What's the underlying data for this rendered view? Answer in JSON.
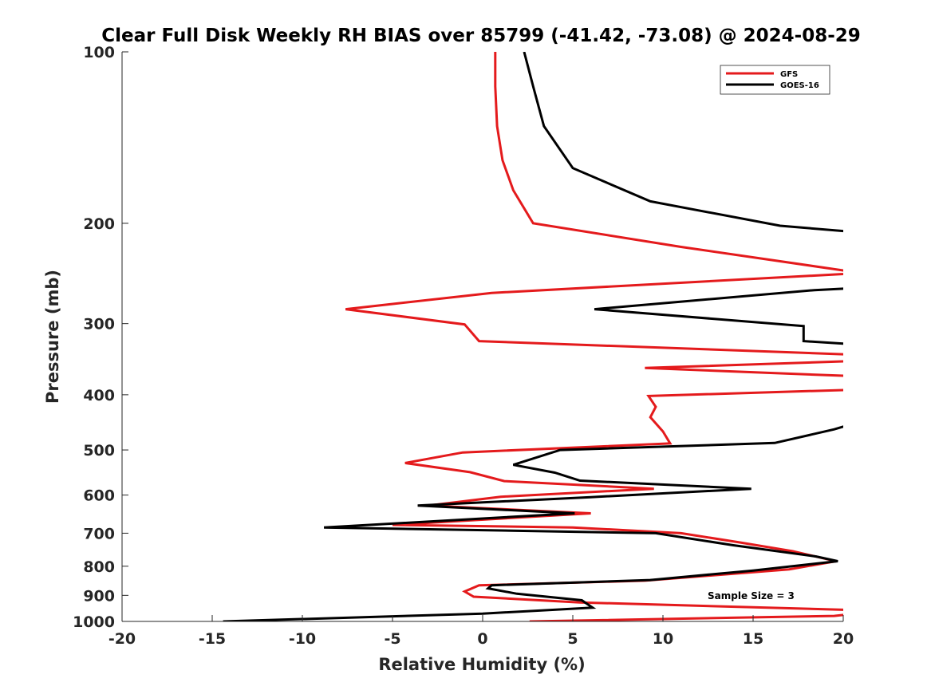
{
  "chart_data": {
    "type": "line",
    "title": "Clear Full Disk Weekly RH BIAS over 85799 (-41.42, -73.08) @ 2024-08-29",
    "xlabel": "Relative Humidity (%)",
    "ylabel": "Pressure (mb)",
    "xlim": [
      -20,
      20
    ],
    "ylim": [
      100,
      1000
    ],
    "y_scale": "log",
    "y_reversed": true,
    "x_ticks": [
      -20,
      -15,
      -10,
      -5,
      0,
      5,
      10,
      15,
      20
    ],
    "y_ticks": [
      100,
      200,
      300,
      400,
      500,
      600,
      700,
      800,
      900,
      1000
    ],
    "grid": false,
    "legend_position": "top-right",
    "annotation": "Sample Size = 3",
    "series": [
      {
        "name": "GFS",
        "color": "#e41a1c",
        "points": [
          [
            0.7,
            100
          ],
          [
            0.7,
            115
          ],
          [
            0.8,
            135
          ],
          [
            1.1,
            155
          ],
          [
            1.7,
            175
          ],
          [
            2.8,
            200
          ],
          [
            11,
            220
          ],
          [
            20,
            242
          ],
          [
            20.5,
            245
          ],
          [
            0.5,
            265
          ],
          [
            -7.6,
            283
          ],
          [
            -1,
            301
          ],
          [
            -0.2,
            322
          ],
          [
            20.5,
            340
          ],
          [
            20.5,
            349
          ],
          [
            9,
            359
          ],
          [
            20.5,
            371
          ],
          [
            20.5,
            392
          ],
          [
            9.2,
            402
          ],
          [
            9.6,
            420
          ],
          [
            9.3,
            438
          ],
          [
            10,
            464
          ],
          [
            10.4,
            487
          ],
          [
            -1.1,
            505
          ],
          [
            -4.3,
            527
          ],
          [
            -0.7,
            547
          ],
          [
            1.2,
            567
          ],
          [
            9.5,
            585
          ],
          [
            1,
            604
          ],
          [
            -3,
            626
          ],
          [
            6,
            646
          ],
          [
            -5,
            677
          ],
          [
            5,
            684
          ],
          [
            11,
            700
          ],
          [
            14.3,
            727
          ],
          [
            17.2,
            753
          ],
          [
            19.6,
            784
          ],
          [
            17,
            810
          ],
          [
            9,
            848
          ],
          [
            -0.2,
            864
          ],
          [
            -1,
            886
          ],
          [
            -0.5,
            905
          ],
          [
            5.4,
            926
          ],
          [
            20.5,
            955
          ],
          [
            20.5,
            970
          ],
          [
            19.5,
            978
          ],
          [
            2.6,
            1000
          ]
        ]
      },
      {
        "name": "GOES-16",
        "color": "#000000",
        "points": [
          [
            2.3,
            100
          ],
          [
            2.8,
            115
          ],
          [
            3.4,
            135
          ],
          [
            5,
            160
          ],
          [
            9.3,
            183
          ],
          [
            16.5,
            202
          ],
          [
            20.5,
            207
          ],
          [
            20.5,
            260
          ],
          [
            18.4,
            262
          ],
          [
            6.2,
            283
          ],
          [
            17.8,
            303
          ],
          [
            17.8,
            322
          ],
          [
            20.5,
            326
          ],
          [
            20.5,
            450
          ],
          [
            19.5,
            460
          ],
          [
            16.2,
            486
          ],
          [
            4.3,
            500
          ],
          [
            1.7,
            531
          ],
          [
            4,
            548
          ],
          [
            5.4,
            566
          ],
          [
            14.9,
            585
          ],
          [
            6,
            605
          ],
          [
            -3.6,
            626
          ],
          [
            5.1,
            646
          ],
          [
            -8.8,
            684
          ],
          [
            9.6,
            700
          ],
          [
            13.9,
            735
          ],
          [
            18.5,
            769
          ],
          [
            19.7,
            784
          ],
          [
            15,
            814
          ],
          [
            9.3,
            846
          ],
          [
            0.5,
            864
          ],
          [
            0.3,
            875
          ],
          [
            1.9,
            894
          ],
          [
            5.5,
            918
          ],
          [
            6.1,
            946
          ],
          [
            0,
            969
          ],
          [
            -14.4,
            1000
          ]
        ]
      }
    ]
  }
}
